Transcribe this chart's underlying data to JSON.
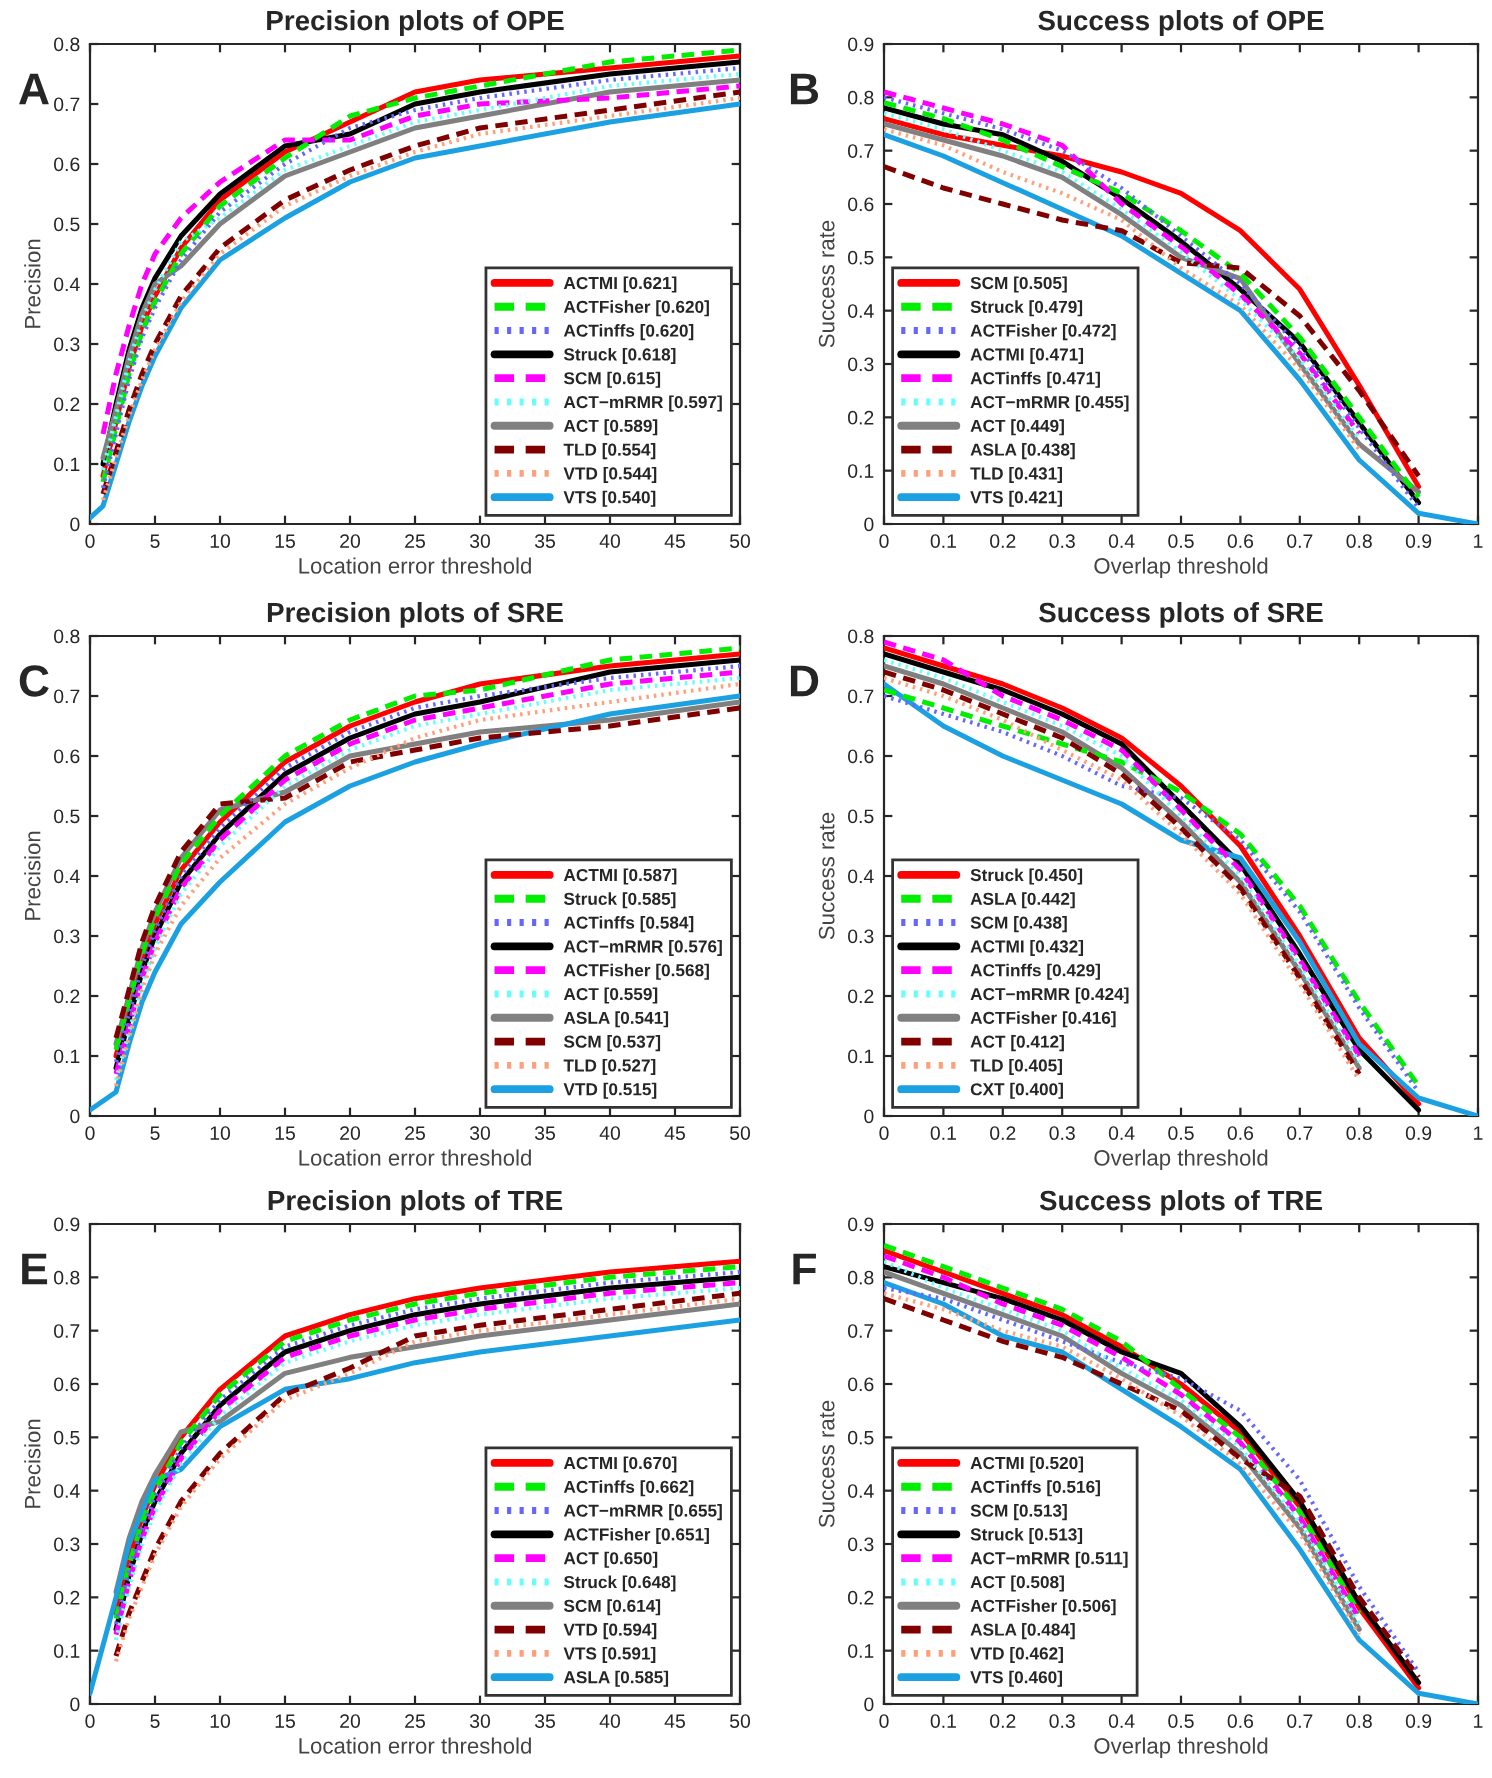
{
  "chart_data": [
    {
      "type": "line",
      "title": "Precision plots of OPE",
      "xlabel": "Location error threshold",
      "ylabel": "Precision",
      "annotations": [
        "A"
      ],
      "legend": "bottom right",
      "xlim": [
        0,
        50
      ],
      "xticks": [
        0,
        5,
        10,
        15,
        20,
        25,
        30,
        35,
        40,
        45,
        50
      ],
      "ylim": [
        0,
        0.8
      ],
      "yticks": [
        0,
        0.1,
        0.2,
        0.3,
        0.4,
        0.5,
        0.6,
        0.7,
        0.8
      ],
      "x": [
        0,
        1,
        2,
        3,
        4,
        5,
        7,
        10,
        15,
        20,
        25,
        30,
        40,
        50
      ],
      "series": [
        {
          "name": "ACTMI [0.621]",
          "color": "#ff0000",
          "line_style": "solid",
          "values": [
            null,
            0.08,
            0.17,
            0.26,
            0.33,
            0.38,
            0.46,
            0.54,
            0.62,
            0.67,
            0.72,
            0.74,
            0.76,
            0.78
          ]
        },
        {
          "name": "ACTFisher [0.620]",
          "color": "#00ee00",
          "line_style": "dashed",
          "values": [
            null,
            0.07,
            0.16,
            0.25,
            0.32,
            0.37,
            0.45,
            0.53,
            0.61,
            0.68,
            0.71,
            0.73,
            0.77,
            0.79
          ]
        },
        {
          "name": "ACTinffs [0.620]",
          "color": "#6666ff",
          "line_style": "dotted",
          "values": [
            null,
            0.06,
            0.15,
            0.24,
            0.31,
            0.36,
            0.44,
            0.52,
            0.6,
            0.66,
            0.69,
            0.71,
            0.74,
            0.76
          ]
        },
        {
          "name": "Struck [0.618]",
          "color": "#000000",
          "line_style": "solid",
          "values": [
            null,
            0.1,
            0.2,
            0.29,
            0.36,
            0.41,
            0.48,
            0.55,
            0.63,
            0.65,
            0.7,
            0.72,
            0.75,
            0.77
          ]
        },
        {
          "name": "SCM [0.615]",
          "color": "#ff00ff",
          "line_style": "dashed",
          "values": [
            null,
            0.15,
            0.25,
            0.33,
            0.4,
            0.45,
            0.51,
            0.57,
            0.64,
            0.64,
            0.68,
            0.7,
            0.71,
            0.73
          ]
        },
        {
          "name": "ACT−mRMR [0.597]",
          "color": "#66ffff",
          "line_style": "dotted",
          "values": [
            null,
            0.09,
            0.18,
            0.27,
            0.34,
            0.39,
            0.47,
            0.51,
            0.59,
            0.63,
            0.67,
            0.69,
            0.73,
            0.75
          ]
        },
        {
          "name": "ACT [0.589]",
          "color": "#808080",
          "line_style": "solid",
          "values": [
            null,
            0.11,
            0.19,
            0.28,
            0.35,
            0.4,
            0.43,
            0.5,
            0.58,
            0.62,
            0.66,
            0.68,
            0.72,
            0.74
          ]
        },
        {
          "name": "TLD [0.554]",
          "color": "#800000",
          "line_style": "dashed",
          "values": [
            null,
            0.05,
            0.12,
            0.19,
            0.25,
            0.3,
            0.38,
            0.46,
            0.54,
            0.59,
            0.63,
            0.66,
            0.69,
            0.72
          ]
        },
        {
          "name": "VTD [0.544]",
          "color": "#ffa07a",
          "line_style": "dotted",
          "values": [
            null,
            0.04,
            0.11,
            0.18,
            0.24,
            0.29,
            0.37,
            0.45,
            0.53,
            0.58,
            0.62,
            0.65,
            0.68,
            0.71
          ]
        },
        {
          "name": "VTS [0.540]",
          "color": "#1ba1e2",
          "line_style": "solid",
          "values": [
            0.01,
            0.03,
            0.1,
            0.17,
            0.23,
            0.28,
            0.36,
            0.44,
            0.51,
            0.57,
            0.61,
            0.63,
            0.67,
            0.7
          ]
        }
      ]
    },
    {
      "type": "line",
      "title": "Success plots of OPE",
      "xlabel": "Overlap threshold",
      "ylabel": "Success rate",
      "annotations": [
        "B"
      ],
      "legend": "bottom left",
      "xlim": [
        0,
        1
      ],
      "xticks": [
        0,
        0.1,
        0.2,
        0.3,
        0.4,
        0.5,
        0.6,
        0.7,
        0.8,
        0.9,
        1
      ],
      "ylim": [
        0,
        0.9
      ],
      "yticks": [
        0,
        0.1,
        0.2,
        0.3,
        0.4,
        0.5,
        0.6,
        0.7,
        0.8,
        0.9
      ],
      "x": [
        0,
        0.1,
        0.2,
        0.3,
        0.4,
        0.5,
        0.6,
        0.7,
        0.8,
        0.9,
        1
      ],
      "series": [
        {
          "name": "SCM [0.505]",
          "color": "#ff0000",
          "line_style": "solid",
          "values": [
            0.76,
            0.73,
            0.71,
            0.69,
            0.66,
            0.62,
            0.55,
            0.44,
            0.26,
            0.07,
            null
          ]
        },
        {
          "name": "Struck [0.479]",
          "color": "#00ee00",
          "line_style": "dashed",
          "values": [
            0.79,
            0.76,
            0.72,
            0.67,
            0.62,
            0.55,
            0.47,
            0.35,
            0.2,
            0.05,
            null
          ]
        },
        {
          "name": "ACTFisher [0.472]",
          "color": "#6666ff",
          "line_style": "dotted",
          "values": [
            0.8,
            0.77,
            0.74,
            0.7,
            0.63,
            0.54,
            0.45,
            0.33,
            0.18,
            0.03,
            null
          ]
        },
        {
          "name": "ACTMI [0.471]",
          "color": "#000000",
          "line_style": "solid",
          "values": [
            0.78,
            0.75,
            0.73,
            0.68,
            0.61,
            0.53,
            0.44,
            0.34,
            0.19,
            0.04,
            null
          ]
        },
        {
          "name": "ACTinffs [0.471]",
          "color": "#ff00ff",
          "line_style": "dashed",
          "values": [
            0.81,
            0.78,
            0.75,
            0.71,
            0.6,
            0.52,
            0.43,
            0.32,
            0.17,
            null,
            null
          ]
        },
        {
          "name": "ACT−mRMR [0.455]",
          "color": "#66ffff",
          "line_style": "dotted",
          "values": [
            0.77,
            0.74,
            0.7,
            0.66,
            0.59,
            0.51,
            0.42,
            0.31,
            0.16,
            null,
            null
          ]
        },
        {
          "name": "ACT [0.449]",
          "color": "#808080",
          "line_style": "solid",
          "values": [
            0.75,
            0.72,
            0.69,
            0.65,
            0.58,
            0.5,
            0.46,
            0.3,
            0.15,
            0.06,
            null
          ]
        },
        {
          "name": "ASLA [0.438]",
          "color": "#800000",
          "line_style": "dashed",
          "values": [
            0.67,
            0.63,
            0.6,
            0.57,
            0.55,
            0.49,
            0.48,
            0.39,
            0.25,
            0.09,
            null
          ]
        },
        {
          "name": "TLD [0.431]",
          "color": "#ffa07a",
          "line_style": "dotted",
          "values": [
            0.74,
            0.71,
            0.66,
            0.62,
            0.57,
            0.48,
            0.41,
            0.29,
            0.14,
            null,
            null
          ]
        },
        {
          "name": "VTS [0.421]",
          "color": "#1ba1e2",
          "line_style": "solid",
          "values": [
            0.73,
            0.69,
            0.64,
            0.59,
            0.54,
            0.47,
            0.4,
            0.27,
            0.12,
            0.02,
            0
          ]
        }
      ]
    },
    {
      "type": "line",
      "title": "Precision plots of SRE",
      "xlabel": "Location error threshold",
      "ylabel": "Precision",
      "annotations": [
        "C"
      ],
      "legend": "bottom right",
      "xlim": [
        0,
        50
      ],
      "xticks": [
        0,
        5,
        10,
        15,
        20,
        25,
        30,
        35,
        40,
        45,
        50
      ],
      "ylim": [
        0,
        0.8
      ],
      "yticks": [
        0,
        0.1,
        0.2,
        0.3,
        0.4,
        0.5,
        0.6,
        0.7,
        0.8
      ],
      "x": [
        0,
        2,
        3,
        4,
        5,
        7,
        10,
        15,
        20,
        25,
        30,
        40,
        50
      ],
      "series": [
        {
          "name": "ACTMI [0.587]",
          "color": "#ff0000",
          "line_style": "solid",
          "values": [
            null,
            0.1,
            0.18,
            0.26,
            0.32,
            0.41,
            0.49,
            0.59,
            0.65,
            0.69,
            0.72,
            0.75,
            0.77
          ]
        },
        {
          "name": "Struck [0.585]",
          "color": "#00ee00",
          "line_style": "dashed",
          "values": [
            null,
            0.11,
            0.19,
            0.27,
            0.33,
            0.42,
            0.5,
            0.6,
            0.66,
            0.7,
            0.71,
            0.76,
            0.78
          ]
        },
        {
          "name": "ACTinffs [0.584]",
          "color": "#6666ff",
          "line_style": "dotted",
          "values": [
            null,
            0.09,
            0.17,
            0.25,
            0.31,
            0.4,
            0.48,
            0.58,
            0.64,
            0.68,
            0.7,
            0.73,
            0.75
          ]
        },
        {
          "name": "ACT−mRMR [0.576]",
          "color": "#000000",
          "line_style": "solid",
          "values": [
            null,
            0.08,
            0.16,
            0.24,
            0.3,
            0.39,
            0.47,
            0.57,
            0.63,
            0.67,
            0.69,
            0.74,
            0.76
          ]
        },
        {
          "name": "ACTFisher [0.568]",
          "color": "#ff00ff",
          "line_style": "dashed",
          "values": [
            null,
            0.07,
            0.15,
            0.23,
            0.29,
            0.38,
            0.46,
            0.56,
            0.62,
            0.66,
            0.68,
            0.72,
            0.74
          ]
        },
        {
          "name": "ACT [0.559]",
          "color": "#66ffff",
          "line_style": "dotted",
          "values": [
            null,
            0.06,
            0.14,
            0.22,
            0.28,
            0.37,
            0.45,
            0.55,
            0.61,
            0.65,
            0.67,
            0.71,
            0.73
          ]
        },
        {
          "name": "ASLA [0.541]",
          "color": "#808080",
          "line_style": "solid",
          "values": [
            null,
            0.12,
            0.2,
            0.28,
            0.34,
            0.43,
            0.51,
            0.54,
            0.6,
            0.62,
            0.64,
            0.66,
            0.69
          ]
        },
        {
          "name": "SCM [0.537]",
          "color": "#800000",
          "line_style": "dashed",
          "values": [
            null,
            0.13,
            0.21,
            0.29,
            0.35,
            0.44,
            0.52,
            0.53,
            0.59,
            0.61,
            0.63,
            0.65,
            0.68
          ]
        },
        {
          "name": "TLD [0.527]",
          "color": "#ffa07a",
          "line_style": "dotted",
          "values": [
            null,
            0.05,
            0.13,
            0.21,
            0.27,
            0.35,
            0.43,
            0.52,
            0.58,
            0.63,
            0.66,
            0.69,
            0.72
          ]
        },
        {
          "name": "VTD [0.515]",
          "color": "#1ba1e2",
          "line_style": "solid",
          "values": [
            0.01,
            0.04,
            0.12,
            0.19,
            0.24,
            0.32,
            0.39,
            0.49,
            0.55,
            0.59,
            0.62,
            0.67,
            0.7
          ]
        }
      ]
    },
    {
      "type": "line",
      "title": "Success plots of SRE",
      "xlabel": "Overlap threshold",
      "ylabel": "Success rate",
      "annotations": [
        "D"
      ],
      "legend": "bottom left",
      "xlim": [
        0,
        1
      ],
      "xticks": [
        0,
        0.1,
        0.2,
        0.3,
        0.4,
        0.5,
        0.6,
        0.7,
        0.8,
        0.9,
        1
      ],
      "ylim": [
        0,
        0.8
      ],
      "yticks": [
        0,
        0.1,
        0.2,
        0.3,
        0.4,
        0.5,
        0.6,
        0.7,
        0.8
      ],
      "x": [
        0,
        0.1,
        0.2,
        0.3,
        0.4,
        0.5,
        0.6,
        0.7,
        0.8,
        0.9,
        1
      ],
      "series": [
        {
          "name": "Struck [0.450]",
          "color": "#ff0000",
          "line_style": "solid",
          "values": [
            0.78,
            0.75,
            0.72,
            0.68,
            0.63,
            0.55,
            0.45,
            0.3,
            0.13,
            0.02,
            null
          ]
        },
        {
          "name": "ASLA [0.442]",
          "color": "#00ee00",
          "line_style": "dashed",
          "values": [
            0.71,
            0.68,
            0.65,
            0.62,
            0.59,
            0.54,
            0.47,
            0.35,
            0.19,
            0.05,
            null
          ]
        },
        {
          "name": "SCM [0.438]",
          "color": "#6666ff",
          "line_style": "dotted",
          "values": [
            0.7,
            0.67,
            0.64,
            0.6,
            0.55,
            0.53,
            0.46,
            0.34,
            0.18,
            0.04,
            null
          ]
        },
        {
          "name": "ACTMI [0.432]",
          "color": "#000000",
          "line_style": "solid",
          "values": [
            0.77,
            0.74,
            0.71,
            0.67,
            0.62,
            0.52,
            0.42,
            0.27,
            0.11,
            0.01,
            null
          ]
        },
        {
          "name": "ACTinffs [0.429]",
          "color": "#ff00ff",
          "line_style": "dashed",
          "values": [
            0.79,
            0.76,
            0.7,
            0.66,
            0.61,
            0.51,
            0.41,
            0.26,
            0.1,
            null,
            null
          ]
        },
        {
          "name": "ACT−mRMR [0.424]",
          "color": "#66ffff",
          "line_style": "dotted",
          "values": [
            0.76,
            0.73,
            0.69,
            0.65,
            0.6,
            0.5,
            0.4,
            0.25,
            0.09,
            null,
            null
          ]
        },
        {
          "name": "ACTFisher [0.416]",
          "color": "#808080",
          "line_style": "solid",
          "values": [
            0.75,
            0.72,
            0.68,
            0.64,
            0.58,
            0.49,
            0.39,
            0.24,
            0.08,
            null,
            null
          ]
        },
        {
          "name": "ACT [0.412]",
          "color": "#800000",
          "line_style": "dashed",
          "values": [
            0.74,
            0.71,
            0.67,
            0.63,
            0.57,
            0.48,
            0.38,
            0.23,
            0.07,
            null,
            null
          ]
        },
        {
          "name": "TLD [0.405]",
          "color": "#ffa07a",
          "line_style": "dotted",
          "values": [
            0.73,
            0.7,
            0.66,
            0.61,
            0.56,
            0.47,
            0.37,
            0.22,
            0.06,
            null,
            null
          ]
        },
        {
          "name": "CXT [0.400]",
          "color": "#1ba1e2",
          "line_style": "solid",
          "values": [
            0.72,
            0.65,
            0.6,
            0.56,
            0.52,
            0.46,
            0.43,
            0.29,
            0.12,
            0.03,
            0
          ]
        }
      ]
    },
    {
      "type": "line",
      "title": "Precision plots of TRE",
      "xlabel": "Location error threshold",
      "ylabel": "Precision",
      "annotations": [
        "E"
      ],
      "legend": "bottom right",
      "xlim": [
        0,
        50
      ],
      "xticks": [
        0,
        5,
        10,
        15,
        20,
        25,
        30,
        35,
        40,
        45,
        50
      ],
      "ylim": [
        0,
        0.9
      ],
      "yticks": [
        0,
        0.1,
        0.2,
        0.3,
        0.4,
        0.5,
        0.6,
        0.7,
        0.8,
        0.9
      ],
      "x": [
        0,
        2,
        3,
        4,
        5,
        7,
        10,
        15,
        20,
        25,
        30,
        40,
        50
      ],
      "series": [
        {
          "name": "ACTMI [0.670]",
          "color": "#ff0000",
          "line_style": "solid",
          "values": [
            null,
            0.17,
            0.27,
            0.35,
            0.41,
            0.5,
            0.59,
            0.69,
            0.73,
            0.76,
            0.78,
            0.81,
            0.83
          ]
        },
        {
          "name": "ACTinffs [0.662]",
          "color": "#00ee00",
          "line_style": "dashed",
          "values": [
            null,
            0.16,
            0.26,
            0.34,
            0.4,
            0.49,
            0.58,
            0.68,
            0.72,
            0.75,
            0.77,
            0.8,
            0.82
          ]
        },
        {
          "name": "ACT−mRMR [0.655]",
          "color": "#6666ff",
          "line_style": "dotted",
          "values": [
            null,
            0.15,
            0.25,
            0.33,
            0.39,
            0.48,
            0.57,
            0.67,
            0.71,
            0.74,
            0.76,
            0.79,
            0.81
          ]
        },
        {
          "name": "ACTFisher [0.651]",
          "color": "#000000",
          "line_style": "solid",
          "values": [
            null,
            0.14,
            0.24,
            0.32,
            0.38,
            0.47,
            0.56,
            0.66,
            0.7,
            0.73,
            0.75,
            0.78,
            0.8
          ]
        },
        {
          "name": "ACT [0.650]",
          "color": "#ff00ff",
          "line_style": "dashed",
          "values": [
            null,
            0.13,
            0.23,
            0.31,
            0.37,
            0.46,
            0.55,
            0.65,
            0.69,
            0.72,
            0.74,
            0.77,
            0.79
          ]
        },
        {
          "name": "Struck [0.648]",
          "color": "#66ffff",
          "line_style": "dotted",
          "values": [
            null,
            0.12,
            0.22,
            0.3,
            0.36,
            0.45,
            0.54,
            0.64,
            0.68,
            0.71,
            0.73,
            0.76,
            0.78
          ]
        },
        {
          "name": "SCM [0.614]",
          "color": "#808080",
          "line_style": "solid",
          "values": [
            null,
            0.21,
            0.31,
            0.38,
            0.43,
            0.51,
            0.53,
            0.62,
            0.65,
            0.67,
            0.69,
            0.72,
            0.75
          ]
        },
        {
          "name": "VTD [0.594]",
          "color": "#800000",
          "line_style": "dashed",
          "values": [
            null,
            0.09,
            0.17,
            0.23,
            0.29,
            0.38,
            0.47,
            0.58,
            0.63,
            0.69,
            0.71,
            0.74,
            0.77
          ]
        },
        {
          "name": "VTS [0.591]",
          "color": "#ffa07a",
          "line_style": "dotted",
          "values": [
            null,
            0.08,
            0.16,
            0.22,
            0.28,
            0.37,
            0.46,
            0.57,
            0.62,
            0.68,
            0.7,
            0.73,
            0.76
          ]
        },
        {
          "name": "ASLA [0.585]",
          "color": "#1ba1e2",
          "line_style": "solid",
          "values": [
            0.02,
            0.2,
            0.3,
            0.36,
            0.42,
            0.44,
            0.52,
            0.59,
            0.61,
            0.64,
            0.66,
            0.69,
            0.72
          ]
        }
      ]
    },
    {
      "type": "line",
      "title": "Success plots of TRE",
      "xlabel": "Overlap threshold",
      "ylabel": "Success rate",
      "annotations": [
        "F"
      ],
      "legend": "bottom left",
      "xlim": [
        0,
        1
      ],
      "xticks": [
        0,
        0.1,
        0.2,
        0.3,
        0.4,
        0.5,
        0.6,
        0.7,
        0.8,
        0.9,
        1
      ],
      "ylim": [
        0,
        0.9
      ],
      "yticks": [
        0,
        0.1,
        0.2,
        0.3,
        0.4,
        0.5,
        0.6,
        0.7,
        0.8,
        0.9
      ],
      "x": [
        0,
        0.1,
        0.2,
        0.3,
        0.4,
        0.5,
        0.6,
        0.7,
        0.8,
        0.9,
        1
      ],
      "series": [
        {
          "name": "ACTMI [0.520]",
          "color": "#ff0000",
          "line_style": "solid",
          "values": [
            0.85,
            0.81,
            0.77,
            0.73,
            0.67,
            0.6,
            0.51,
            0.37,
            0.18,
            0.03,
            null
          ]
        },
        {
          "name": "ACTinffs [0.516]",
          "color": "#00ee00",
          "line_style": "dashed",
          "values": [
            0.86,
            0.82,
            0.78,
            0.74,
            0.68,
            0.59,
            0.5,
            0.36,
            0.17,
            null,
            null
          ]
        },
        {
          "name": "SCM [0.513]",
          "color": "#6666ff",
          "line_style": "dotted",
          "values": [
            0.78,
            0.76,
            0.72,
            0.68,
            0.64,
            0.61,
            0.55,
            0.42,
            0.22,
            0.06,
            null
          ]
        },
        {
          "name": "Struck [0.513]",
          "color": "#000000",
          "line_style": "solid",
          "values": [
            0.82,
            0.79,
            0.76,
            0.72,
            0.66,
            0.62,
            0.52,
            0.38,
            0.19,
            0.04,
            null
          ]
        },
        {
          "name": "ACT−mRMR [0.511]",
          "color": "#ff00ff",
          "line_style": "dashed",
          "values": [
            0.84,
            0.8,
            0.75,
            0.71,
            0.65,
            0.58,
            0.49,
            0.35,
            0.16,
            null,
            null
          ]
        },
        {
          "name": "ACT [0.508]",
          "color": "#66ffff",
          "line_style": "dotted",
          "values": [
            0.83,
            0.78,
            0.74,
            0.7,
            0.63,
            0.57,
            0.48,
            0.34,
            0.15,
            null,
            null
          ]
        },
        {
          "name": "ACTFisher [0.506]",
          "color": "#808080",
          "line_style": "solid",
          "values": [
            0.81,
            0.77,
            0.73,
            0.69,
            0.62,
            0.56,
            0.47,
            0.33,
            0.14,
            null,
            null
          ]
        },
        {
          "name": "ASLA [0.484]",
          "color": "#800000",
          "line_style": "dashed",
          "values": [
            0.76,
            0.72,
            0.68,
            0.65,
            0.6,
            0.55,
            0.46,
            0.39,
            0.2,
            0.05,
            null
          ]
        },
        {
          "name": "VTD [0.462]",
          "color": "#ffa07a",
          "line_style": "dotted",
          "values": [
            0.77,
            0.74,
            0.7,
            0.67,
            0.61,
            0.54,
            0.45,
            0.32,
            0.13,
            null,
            null
          ]
        },
        {
          "name": "VTS [0.460]",
          "color": "#1ba1e2",
          "line_style": "solid",
          "values": [
            0.79,
            0.75,
            0.69,
            0.66,
            0.59,
            0.52,
            0.44,
            0.29,
            0.12,
            0.02,
            0
          ]
        }
      ]
    }
  ]
}
